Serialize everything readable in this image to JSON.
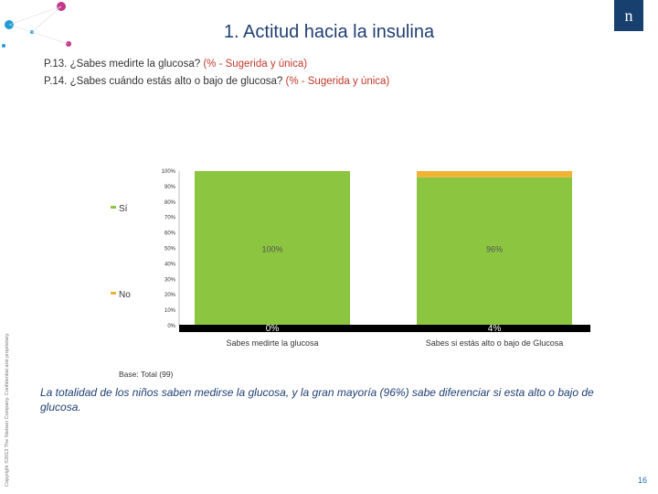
{
  "header": {
    "title": "1. Actitud hacia la insulina",
    "logo_text": "n",
    "questions": [
      {
        "text": "P.13. ¿Sabes medirte la glucosa? ",
        "highlight": "(% - Sugerida y única)"
      },
      {
        "text": "P.14. ¿Sabes cuándo estás alto o bajo de glucosa? ",
        "highlight": "(% - Sugerida y única)"
      }
    ]
  },
  "copyright": "Copyright ©2013 The Nielsen Company. Confidential and proprietary.",
  "colors": {
    "si": "#8cc540",
    "no": "#f2b233",
    "title": "#1f3f73",
    "highlight": "#c0392b"
  },
  "chart_data": {
    "type": "bar",
    "stacked": true,
    "categories": [
      "Sabes medirte la glucosa",
      "Sabes si estás alto o bajo de Glucosa"
    ],
    "series": [
      {
        "name": "Sí",
        "values": [
          100,
          96
        ],
        "labels": [
          "100%",
          "96%"
        ]
      },
      {
        "name": "No",
        "values": [
          0,
          4
        ],
        "labels": [
          "0%",
          "4%"
        ]
      }
    ],
    "ylim": [
      0,
      100
    ],
    "yticks": [
      "0%",
      "10%",
      "20%",
      "30%",
      "40%",
      "50%",
      "60%",
      "70%",
      "80%",
      "90%",
      "100%"
    ],
    "legend": [
      "Sí",
      "No"
    ],
    "legend_position": "left"
  },
  "footer": {
    "base": "Base: Total (99)",
    "conclusion": "La totalidad de los niños saben medirse la glucosa, y la gran mayoría (96%) sabe diferenciar si esta alto o bajo de glucosa.",
    "page": "16"
  }
}
